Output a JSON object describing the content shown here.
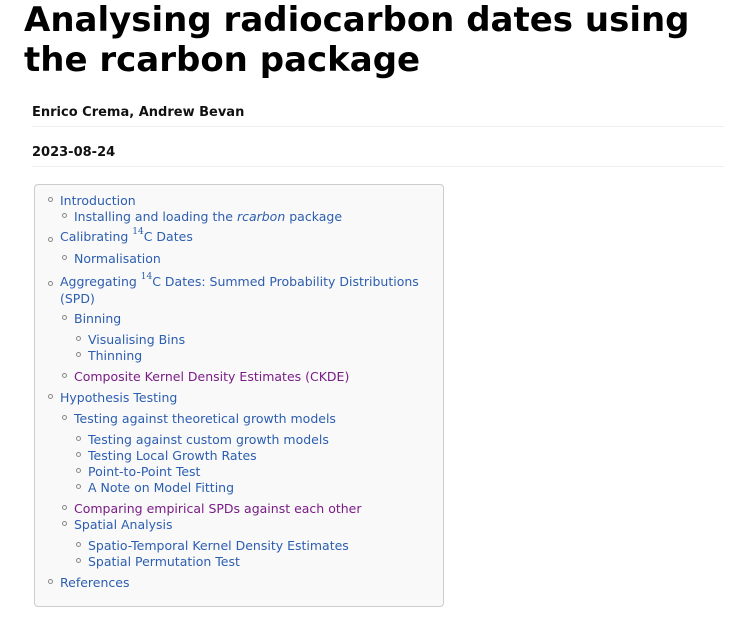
{
  "document": {
    "title": "Analysing radiocarbon dates using the rcarbon package",
    "author": "Enrico Crema, Andrew Bevan",
    "date": "2023-08-24"
  },
  "toc": {
    "introduction": "Introduction",
    "installing_prefix": "Installing and loading the ",
    "installing_em": "rcarbon",
    "installing_suffix": " package",
    "calibrating_prefix": "Calibrating ",
    "iso_superscript": "14",
    "calibrating_suffix": "C Dates",
    "normalisation": "Normalisation",
    "aggregating_prefix": "Aggregating ",
    "aggregating_suffix": "C Dates: Summed Probability Distributions (SPD)",
    "binning": "Binning",
    "visualising_bins": "Visualising Bins",
    "thinning": "Thinning",
    "ckde": "Composite Kernel Density Estimates (CKDE)",
    "hypothesis_testing": "Hypothesis Testing",
    "theoretical_growth": "Testing against theoretical growth models",
    "custom_growth": "Testing against custom growth models",
    "local_growth": "Testing Local Growth Rates",
    "point_to_point": "Point-to-Point Test",
    "model_fitting": "A Note on Model Fitting",
    "comparing_spds": "Comparing empirical SPDs against each other",
    "spatial_analysis": "Spatial Analysis",
    "spatio_temporal": "Spatio-Temporal Kernel Density Estimates",
    "spatial_permutation": "Spatial Permutation Test",
    "references": "References"
  },
  "colors": {
    "link": "#2c5eb0",
    "visited_link": "#7a1c86"
  }
}
